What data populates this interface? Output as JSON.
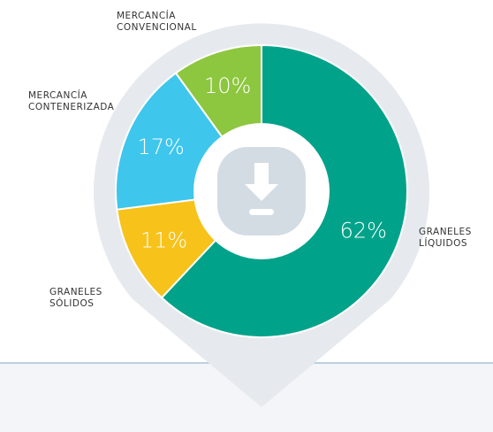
{
  "chart_data": {
    "type": "donut",
    "categories": [
      "GRANELES LÍQUIDOS",
      "GRANELES SÓLIDOS",
      "MERCANCÍA CONTENERIZADA",
      "MERCANCÍA CONVENCIONAL"
    ],
    "values": [
      62,
      11,
      17,
      10
    ],
    "value_labels": [
      "62%",
      "11%",
      "17%",
      "10%"
    ],
    "colors": [
      "#00a38a",
      "#f7c21a",
      "#3ec6ec",
      "#8dc63f"
    ]
  }
}
